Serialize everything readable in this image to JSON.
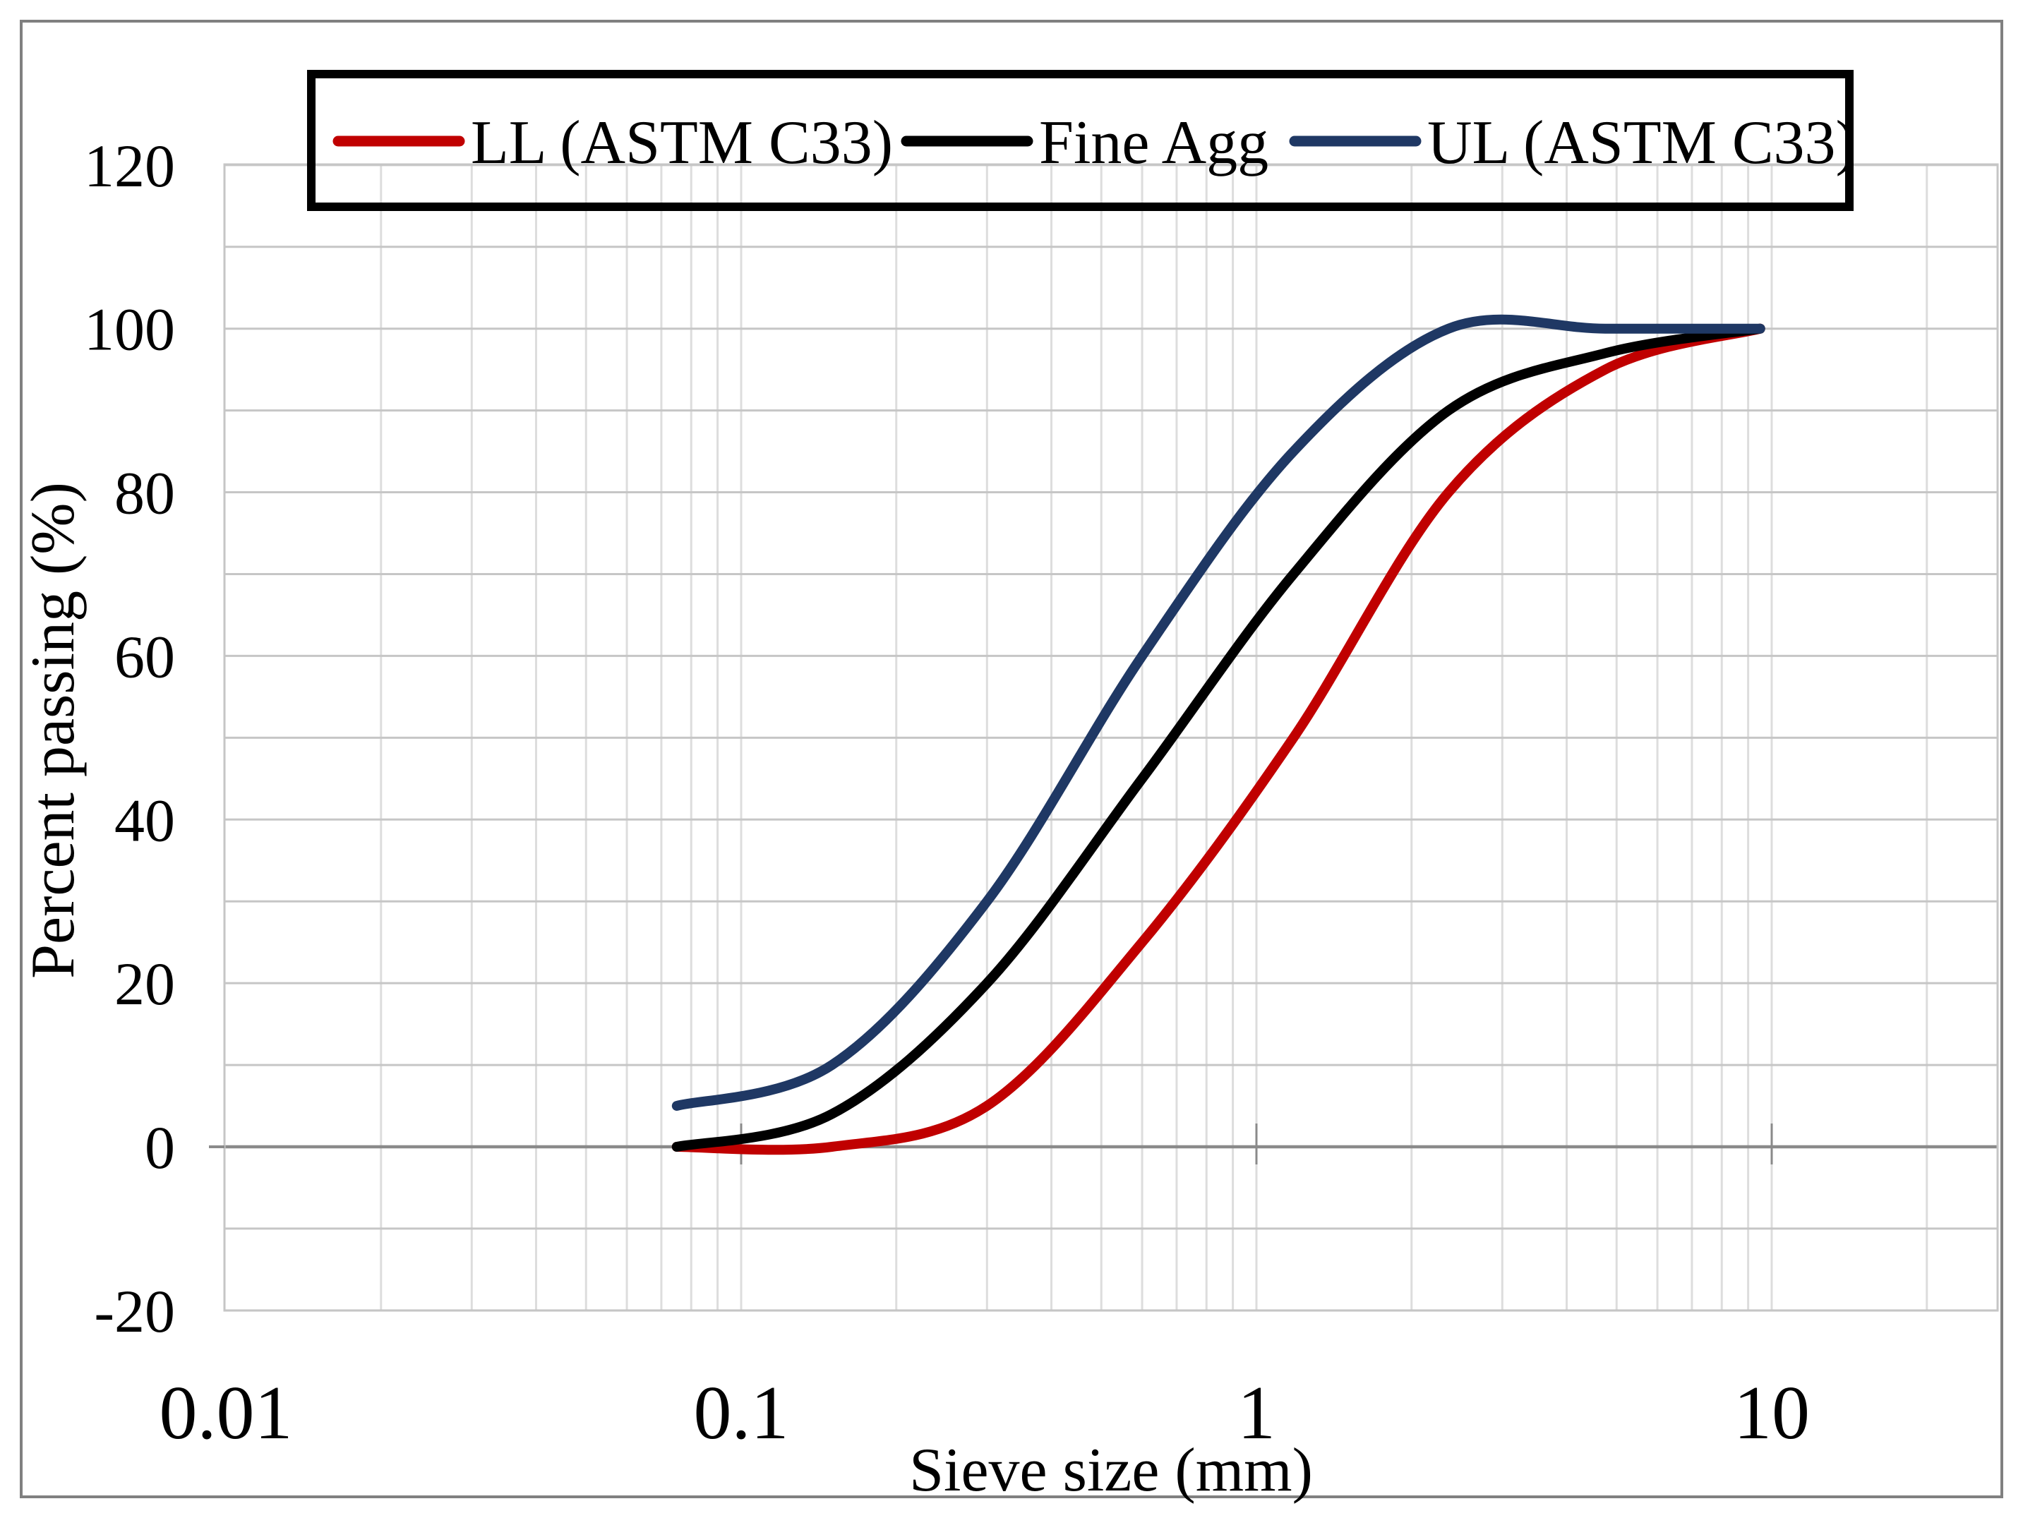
{
  "figure": {
    "background": "#ffffff",
    "outer_border_color": "#808080"
  },
  "chart_data": {
    "type": "line",
    "x_scale": "log",
    "title": "",
    "xlabel": "Sieve size (mm)",
    "ylabel": "Percent passing (%)",
    "x_tick_labels": [
      "0.01",
      "0.1",
      "1",
      "10"
    ],
    "x_tick_values": [
      0.01,
      0.1,
      1,
      10
    ],
    "y_tick_labels": [
      "-20",
      "0",
      "20",
      "40",
      "60",
      "80",
      "100",
      "120"
    ],
    "y_tick_values": [
      -20,
      0,
      20,
      40,
      60,
      80,
      100,
      120
    ],
    "ylim": [
      -20,
      120
    ],
    "xlim": [
      0.01,
      27.5
    ],
    "grid": {
      "horizontal_step": 10,
      "vertical": "log-minor",
      "gridline_color_h": "#c6c6c6",
      "gridline_color_v": "#dddddd",
      "zero_axis_color": "#8a8a8a"
    },
    "legend_position": "top",
    "x": [
      0.075,
      0.15,
      0.3,
      0.6,
      1.18,
      2.36,
      4.75,
      9.5
    ],
    "series": [
      {
        "name": "LL (ASTM C33)",
        "color": "#C00000",
        "values": [
          0,
          0,
          5,
          25,
          50,
          80,
          95,
          100
        ]
      },
      {
        "name": "Fine Agg",
        "color": "#000000",
        "values": [
          0,
          4,
          20,
          45,
          70,
          90,
          97,
          100
        ]
      },
      {
        "name": "UL (ASTM C33)",
        "color": "#1F3864",
        "values": [
          5,
          10,
          30,
          60,
          85,
          100,
          100,
          100
        ]
      }
    ],
    "legend_order": [
      "LL (ASTM C33)",
      "Fine Agg",
      "UL (ASTM C33)"
    ]
  }
}
